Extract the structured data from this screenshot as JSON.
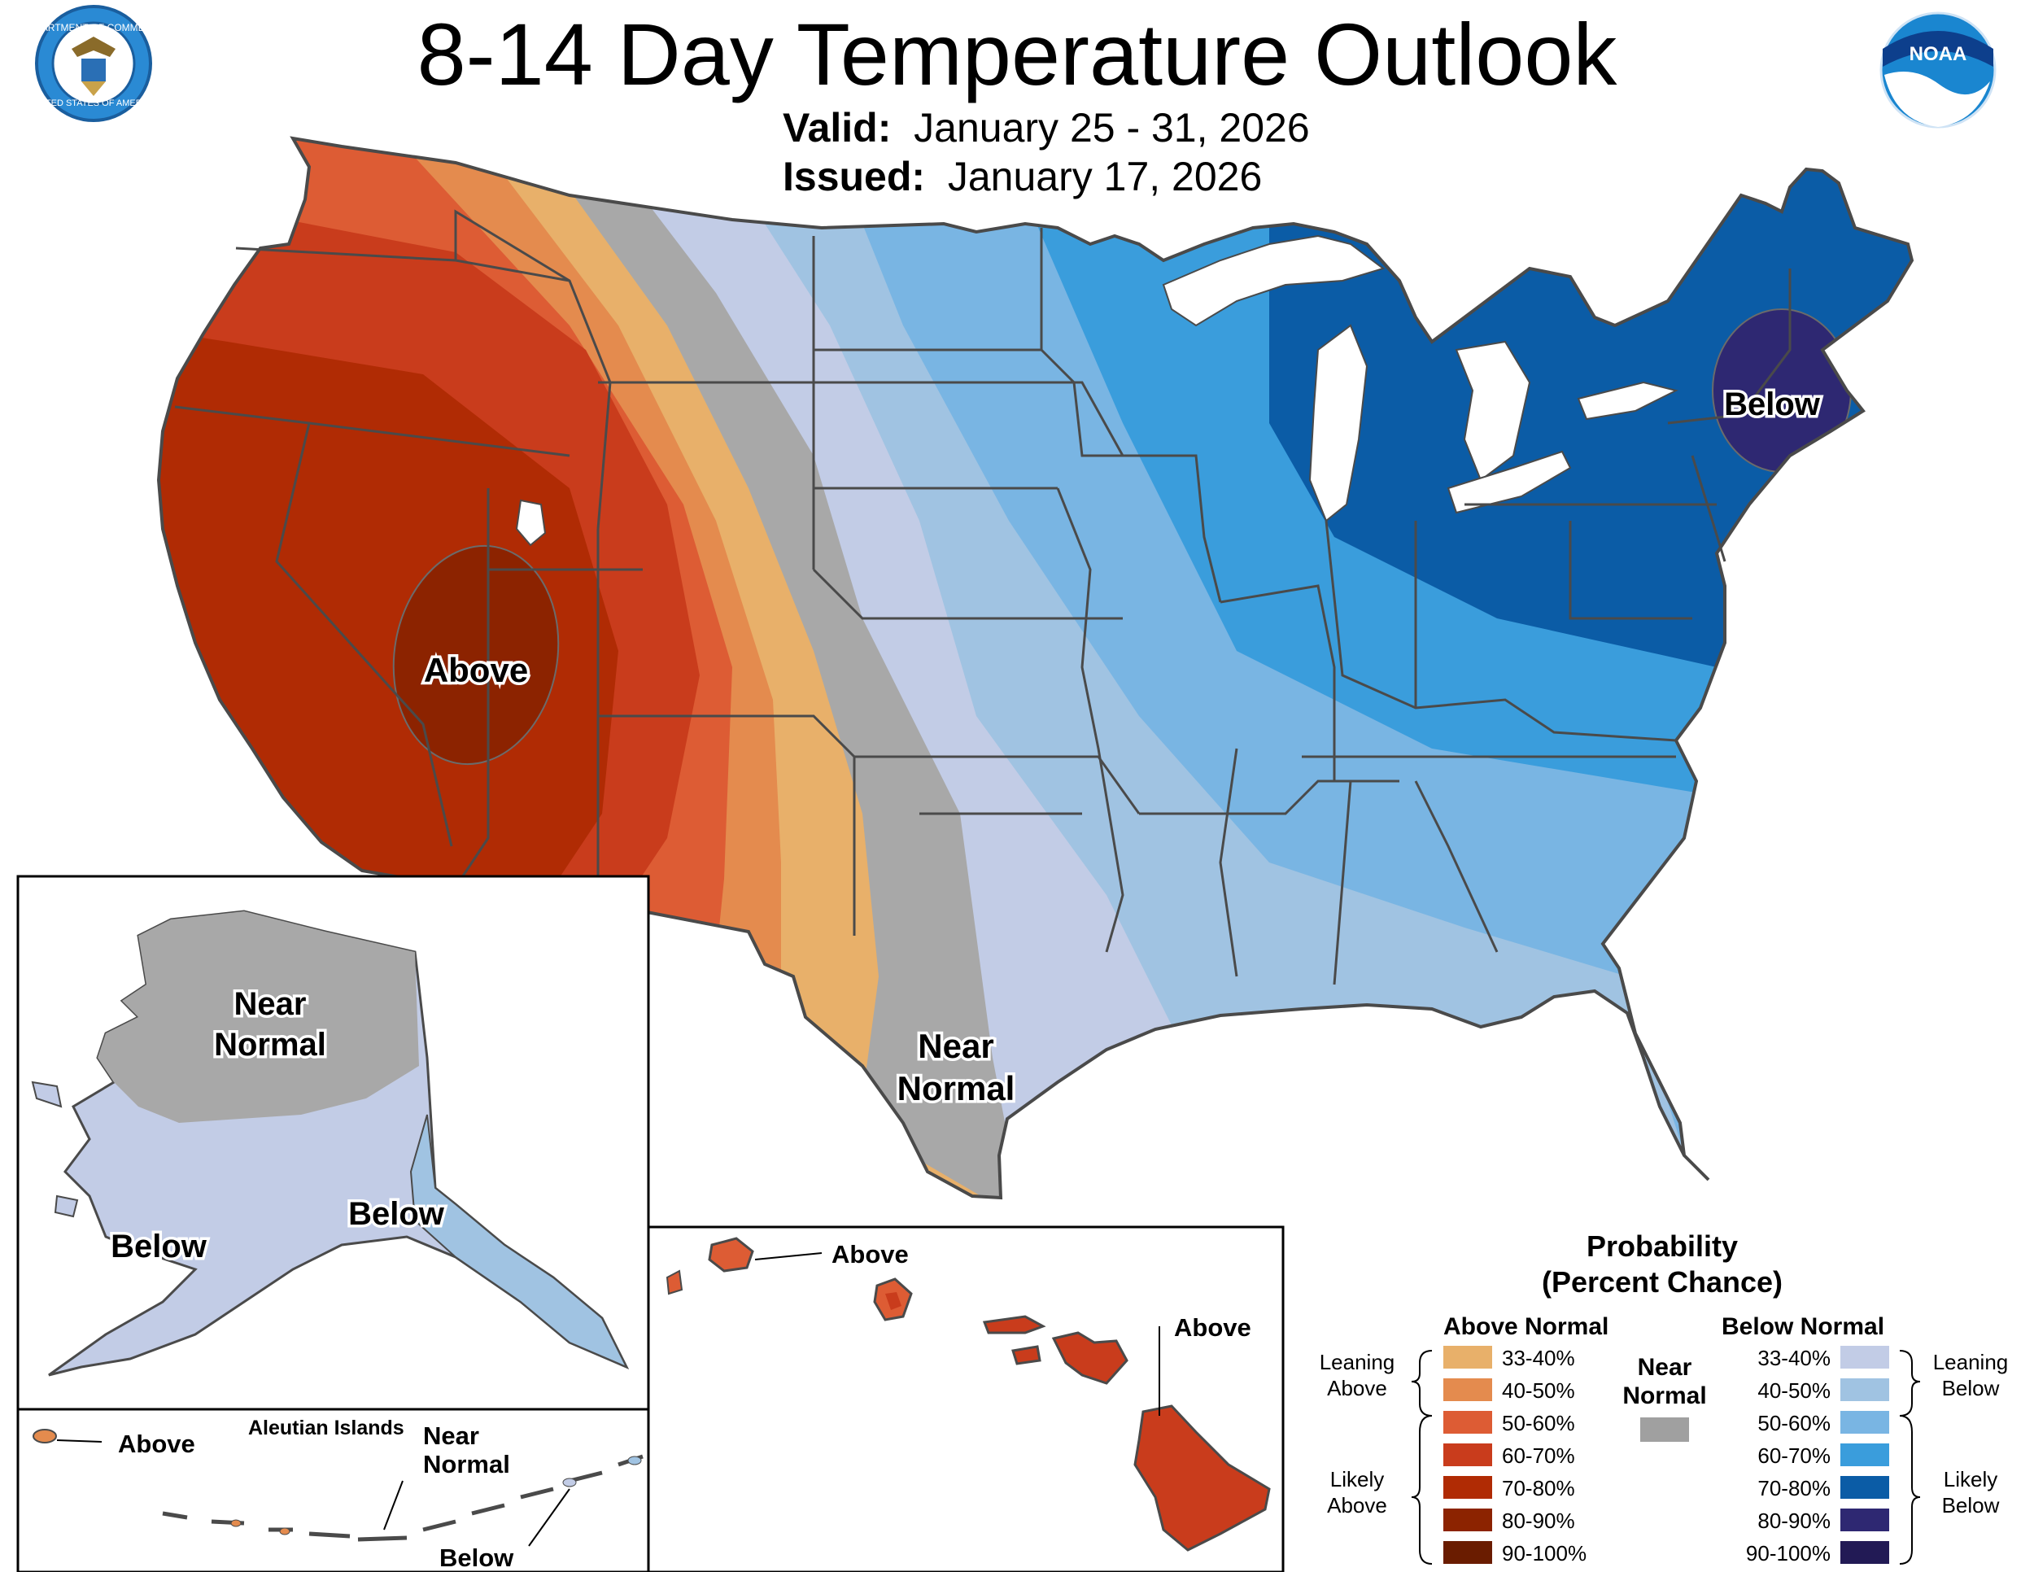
{
  "header": {
    "title": "8-14 Day Temperature Outlook",
    "valid_label": "Valid:",
    "valid_value": "January 25 - 31, 2026",
    "issued_label": "Issued:",
    "issued_value": "January 17, 2026"
  },
  "logos": {
    "left": "Department of Commerce seal",
    "right": "NOAA logo",
    "left_ring_text": "DEPARTMENT OF COMMERCE",
    "left_ring_text_bottom": "UNITED STATES OF AMERICA",
    "right_text": "NOAA"
  },
  "map_labels": {
    "conus_above": "Above",
    "conus_below": "Below",
    "conus_near_1": "Near",
    "conus_near_2": "Normal",
    "alaska_near_1": "Near",
    "alaska_near_2": "Normal",
    "alaska_below_w": "Below",
    "alaska_below_se": "Below",
    "aleutian_title": "Aleutian Islands",
    "aleutian_above": "Above",
    "aleutian_near_1": "Near",
    "aleutian_near_2": "Normal",
    "aleutian_below": "Below",
    "hawaii_above_1": "Above",
    "hawaii_above_2": "Above"
  },
  "legend": {
    "title_1": "Probability",
    "title_2": "(Percent Chance)",
    "above_header": "Above Normal",
    "below_header": "Below Normal",
    "near_1": "Near",
    "near_2": "Normal",
    "near_color": "#a0a0a0",
    "leaning_above_1": "Leaning",
    "leaning_above_2": "Above",
    "likely_above_1": "Likely",
    "likely_above_2": "Above",
    "leaning_below_1": "Leaning",
    "leaning_below_2": "Below",
    "likely_below_1": "Likely",
    "likely_below_2": "Below",
    "above_bins": [
      {
        "label": "33-40%",
        "color": "#e8b06a"
      },
      {
        "label": "40-50%",
        "color": "#e48b4e"
      },
      {
        "label": "50-60%",
        "color": "#dd5c34"
      },
      {
        "label": "60-70%",
        "color": "#c93c1c"
      },
      {
        "label": "70-80%",
        "color": "#b02b04"
      },
      {
        "label": "80-90%",
        "color": "#8c2300"
      },
      {
        "label": "90-100%",
        "color": "#6a1c00"
      }
    ],
    "below_bins": [
      {
        "label": "33-40%",
        "color": "#c2cce6"
      },
      {
        "label": "40-50%",
        "color": "#a0c3e2"
      },
      {
        "label": "50-60%",
        "color": "#79b5e3"
      },
      {
        "label": "60-70%",
        "color": "#3a9ddc"
      },
      {
        "label": "70-80%",
        "color": "#0b5ca6"
      },
      {
        "label": "80-90%",
        "color": "#2e2872"
      },
      {
        "label": "90-100%",
        "color": "#221a55"
      }
    ]
  }
}
